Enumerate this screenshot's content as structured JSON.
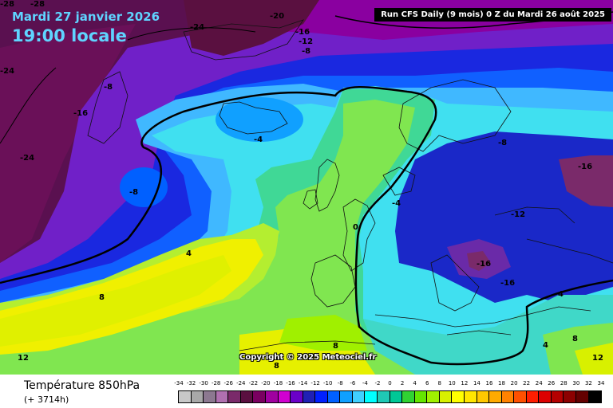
{
  "header": {
    "date": "Mardi 27 janvier 2026",
    "time": "19:00 locale",
    "run_info": "Run CFS Daily (9 mois) 0 Z du Mardi 26 août 2025"
  },
  "copyright": "Copyright © 2025 Meteociel.fr",
  "footer": {
    "variable": "Température 850hPa",
    "lead_time": "(+ 3714h)"
  },
  "legend": {
    "ticks": [
      "-34",
      "-32",
      "-30",
      "-28",
      "-26",
      "-24",
      "-22",
      "-20",
      "-18",
      "-16",
      "-14",
      "-12",
      "-10",
      "-8",
      "-6",
      "-4",
      "-2",
      "0",
      "2",
      "4",
      "6",
      "8",
      "10",
      "12",
      "14",
      "16",
      "18",
      "20",
      "22",
      "24",
      "26",
      "28",
      "30",
      "32",
      "34"
    ],
    "colors": [
      "#c8c8c8",
      "#a8a8a8",
      "#8c7890",
      "#b070b0",
      "#7a2a6a",
      "#5a1040",
      "#7a0060",
      "#a000a0",
      "#d000d0",
      "#6a00c8",
      "#2020b4",
      "#0020ff",
      "#0060ff",
      "#10a0ff",
      "#40d0ff",
      "#00ffff",
      "#20c8b4",
      "#00c896",
      "#30d232",
      "#64e600",
      "#a0f000",
      "#d8f000",
      "#ffff00",
      "#ffe600",
      "#ffc800",
      "#ffaa00",
      "#ff8200",
      "#ff5000",
      "#ff1e00",
      "#dc0000",
      "#b40000",
      "#8c0000",
      "#640000",
      "#000000"
    ]
  },
  "colors": {
    "header_text": "#5fd4ff",
    "sea_background": "#8a00a0",
    "zero_contour": "#000000"
  },
  "contour_labels": [
    {
      "text": "-28"
    },
    {
      "text": "-28"
    },
    {
      "text": "-24"
    },
    {
      "text": "-20"
    },
    {
      "text": "-16"
    },
    {
      "text": "-12"
    },
    {
      "text": "-8"
    },
    {
      "text": "-24"
    },
    {
      "text": "-8"
    },
    {
      "text": "-16"
    },
    {
      "text": "-24"
    },
    {
      "text": "-8"
    },
    {
      "text": "-4"
    },
    {
      "text": "-8"
    },
    {
      "text": "-16"
    },
    {
      "text": "-4"
    },
    {
      "text": "-12"
    },
    {
      "text": "0"
    },
    {
      "text": "4"
    },
    {
      "text": "8"
    },
    {
      "text": "-16"
    },
    {
      "text": "-16"
    },
    {
      "text": "4"
    },
    {
      "text": "12"
    },
    {
      "text": "8"
    },
    {
      "text": "8"
    },
    {
      "text": "4"
    },
    {
      "text": "8"
    },
    {
      "text": "12"
    }
  ]
}
